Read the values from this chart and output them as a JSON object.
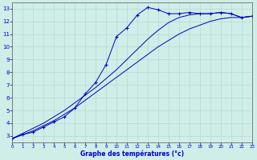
{
  "xlabel": "Graphe des températures (°c)",
  "background_color": "#d0eee8",
  "grid_color": "#b8d8d0",
  "line_color": "#0000bb",
  "text_color": "#0000cc",
  "hours": [
    0,
    1,
    2,
    3,
    4,
    5,
    6,
    7,
    8,
    9,
    10,
    11,
    12,
    13,
    14,
    15,
    16,
    17,
    18,
    19,
    20,
    21,
    22,
    23
  ],
  "temp_actual": [
    2.8,
    3.1,
    3.3,
    3.7,
    4.1,
    4.5,
    5.2,
    6.3,
    7.2,
    8.6,
    10.8,
    11.5,
    12.5,
    13.1,
    12.9,
    12.6,
    12.6,
    12.7,
    12.6,
    12.6,
    12.7,
    12.6,
    12.3,
    12.4
  ],
  "temp_min_line": [
    2.8,
    3.1,
    3.4,
    3.8,
    4.2,
    4.7,
    5.2,
    5.8,
    6.4,
    7.0,
    7.6,
    8.2,
    8.8,
    9.4,
    10.0,
    10.5,
    11.0,
    11.4,
    11.7,
    12.0,
    12.2,
    12.3,
    12.3,
    12.4
  ],
  "temp_max_line": [
    2.8,
    3.2,
    3.6,
    4.0,
    4.5,
    5.0,
    5.6,
    6.2,
    6.8,
    7.5,
    8.2,
    9.0,
    9.8,
    10.6,
    11.3,
    11.9,
    12.3,
    12.5,
    12.6,
    12.6,
    12.7,
    12.6,
    12.3,
    12.4
  ],
  "xlim": [
    0,
    23
  ],
  "ylim": [
    2.5,
    13.5
  ],
  "yticks": [
    3,
    4,
    5,
    6,
    7,
    8,
    9,
    10,
    11,
    12,
    13
  ],
  "xticks": [
    0,
    1,
    2,
    3,
    4,
    5,
    6,
    7,
    8,
    9,
    10,
    11,
    12,
    13,
    14,
    15,
    16,
    17,
    18,
    19,
    20,
    21,
    22,
    23
  ]
}
